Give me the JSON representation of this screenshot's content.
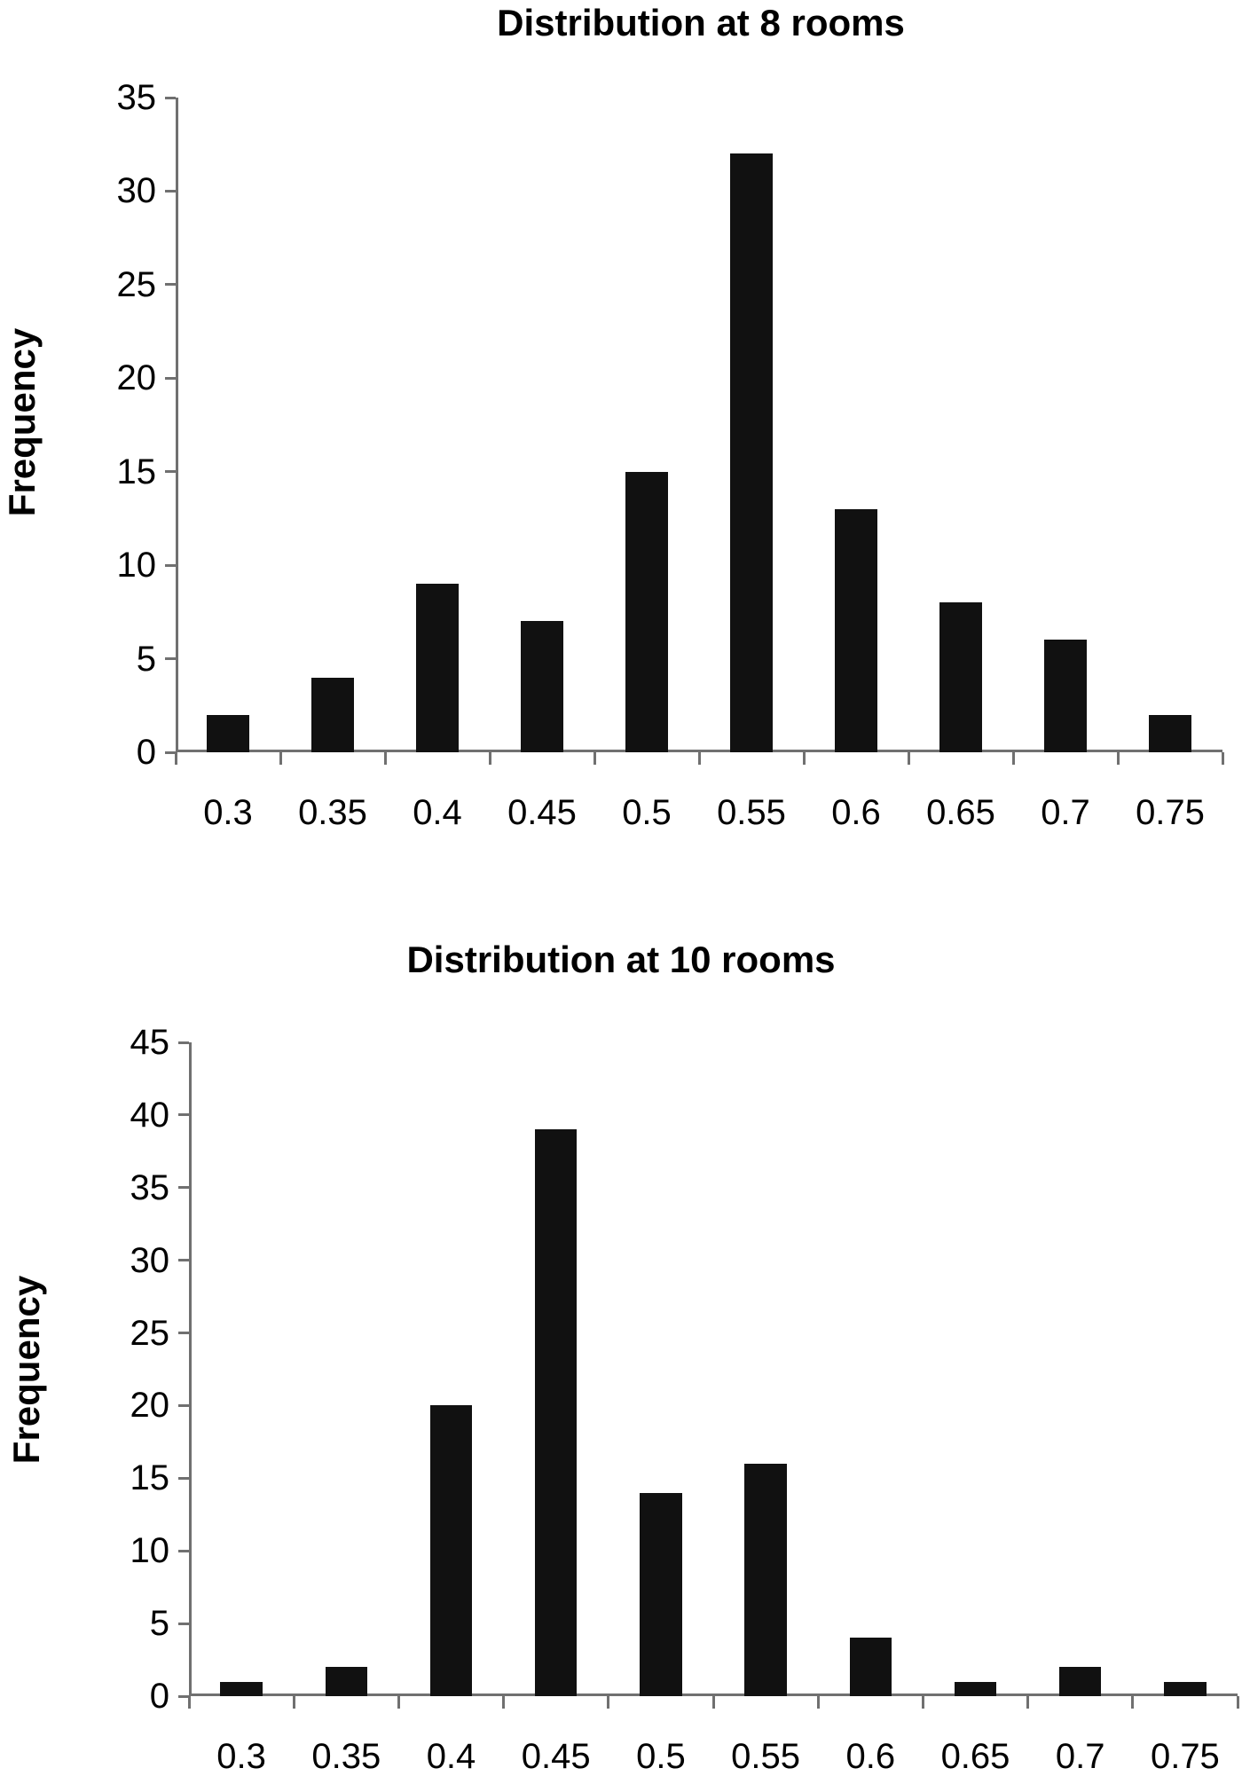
{
  "chart_data": [
    {
      "type": "bar",
      "title": "Distribution at 8 rooms",
      "xlabel": "",
      "ylabel": "Frequency",
      "categories": [
        "0.3",
        "0.35",
        "0.4",
        "0.45",
        "0.5",
        "0.55",
        "0.6",
        "0.65",
        "0.7",
        "0.75"
      ],
      "values": [
        2,
        4,
        9,
        7,
        15,
        32,
        13,
        8,
        6,
        2
      ],
      "ylim": [
        0,
        35
      ],
      "yticks": [
        "0",
        "5",
        "10",
        "15",
        "20",
        "25",
        "30",
        "35"
      ],
      "grid": false,
      "legend": null,
      "bar_color": "#111111"
    },
    {
      "type": "bar",
      "title": "Distribution at 10 rooms",
      "xlabel": "",
      "ylabel": "Frequency",
      "categories": [
        "0.3",
        "0.35",
        "0.4",
        "0.45",
        "0.5",
        "0.55",
        "0.6",
        "0.65",
        "0.7",
        "0.75"
      ],
      "values": [
        1,
        2,
        20,
        39,
        14,
        16,
        4,
        1,
        2,
        1
      ],
      "ylim": [
        0,
        45
      ],
      "yticks": [
        "0",
        "5",
        "10",
        "15",
        "20",
        "25",
        "30",
        "35",
        "40",
        "45"
      ],
      "grid": false,
      "legend": null,
      "bar_color": "#111111"
    }
  ]
}
